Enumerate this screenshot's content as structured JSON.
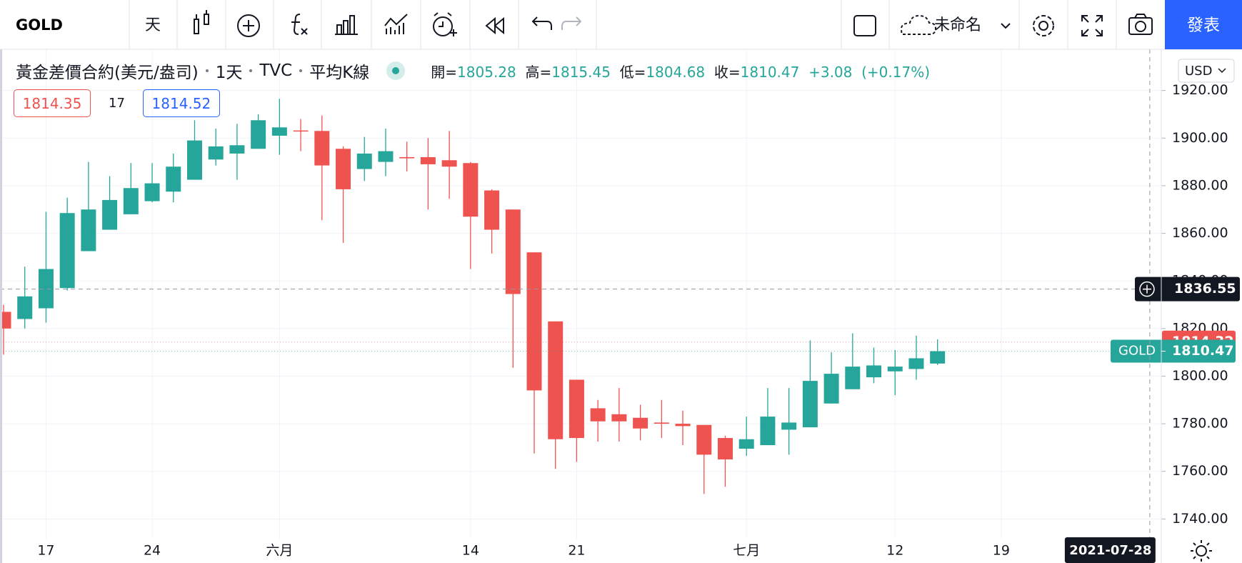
{
  "toolbar": {
    "symbol": "GOLD",
    "interval": "天",
    "layout_name": "未命名",
    "publish": "發表"
  },
  "legend": {
    "title": "黃金差價合約(美元/盎司)",
    "interval": "1天",
    "source": "TVC",
    "chart_style": "平均K線",
    "ohlc": [
      {
        "label": "開=",
        "value": 1805.28
      },
      {
        "label": "高=",
        "value": 1815.45
      },
      {
        "label": "低=",
        "value": 1804.68
      },
      {
        "label": "收=",
        "value": 1810.47
      }
    ],
    "change": "+3.08",
    "change_percent": "(+0.17%)"
  },
  "order_boxes": {
    "sell": 1814.35,
    "spread": 17,
    "buy": 1814.52
  },
  "price_scale": {
    "currency": "USD"
  },
  "chart_data": {
    "type": "candlestick",
    "categories": [
      null,
      null,
      "17",
      null,
      null,
      null,
      null,
      "24",
      null,
      null,
      null,
      null,
      null,
      "六月",
      null,
      null,
      null,
      null,
      null,
      null,
      null,
      null,
      "14",
      null,
      null,
      null,
      null,
      "21",
      null,
      null,
      null,
      null,
      null,
      null,
      null,
      "七月",
      null,
      null,
      null,
      null,
      null,
      null,
      "12",
      null,
      null,
      null,
      null,
      "19",
      null,
      null,
      null,
      null,
      null,
      null,
      null
    ],
    "open": [
      1827,
      1824,
      1828.5,
      1837,
      1852.5,
      1861.5,
      1868,
      1873.5,
      1877.5,
      1882.5,
      1891,
      1893.5,
      1895.5,
      1901,
      1903.2,
      1903,
      1895.5,
      1887,
      1890,
      1892,
      1892,
      1890.7,
      1889.5,
      1878,
      1870,
      1852,
      1823,
      1798.5,
      1786.5,
      1784,
      1782.5,
      1780.5,
      1780,
      1779.5,
      1774,
      1769.5,
      1771,
      1777.5,
      1778.5,
      1788.5,
      1794.5,
      1799.5,
      1802,
      1803,
      1805.28,
      null,
      null,
      null,
      null,
      null,
      null,
      null,
      null,
      null,
      null
    ],
    "high": [
      1830,
      1846,
      1869,
      1875,
      1890,
      1884,
      1889.5,
      1889.5,
      1893.5,
      1907.5,
      1904,
      1906,
      1910,
      1916.5,
      1908,
      1909.5,
      1896.5,
      1900.5,
      1904,
      1898.5,
      1900,
      1903,
      1890,
      1878.5,
      1870,
      1852,
      1823,
      1798.5,
      1790,
      1795,
      1788,
      1790,
      1785.5,
      1779.5,
      1775,
      1783,
      1795,
      1795,
      1815,
      1810,
      1818,
      1812,
      1811,
      1817,
      1815.45,
      null,
      null,
      null,
      null,
      null,
      null,
      null,
      null,
      null,
      null
    ],
    "low": [
      1809,
      1820,
      1822.5,
      1836,
      1852.5,
      1861.5,
      1868,
      1873,
      1873,
      1882.5,
      1888.5,
      1882.5,
      1895.5,
      1893,
      1894.5,
      1865.5,
      1856,
      1882,
      1884,
      1886,
      1870,
      1874.5,
      1845,
      1851.5,
      1803.5,
      1767.5,
      1761,
      1764,
      1772.5,
      1772.5,
      1773,
      1774,
      1771,
      1750.5,
      1753.5,
      1766.5,
      1771,
      1767,
      1778.5,
      1788.5,
      1794.5,
      1797,
      1792,
      1798.5,
      1804.68,
      null,
      null,
      null,
      null,
      null,
      null,
      null,
      null,
      null,
      null
    ],
    "close": [
      1820,
      1833.5,
      1845,
      1868.5,
      1870,
      1874,
      1879,
      1881,
      1888,
      1899,
      1896.5,
      1897,
      1907.5,
      1904.5,
      1902.8,
      1888.5,
      1878.5,
      1893.5,
      1894.5,
      1891.5,
      1889,
      1888,
      1867,
      1861.5,
      1834.5,
      1794,
      1773.5,
      1774,
      1781,
      1781,
      1778,
      1780,
      1779,
      1767,
      1765,
      1773.5,
      1783,
      1780.5,
      1798,
      1801,
      1804,
      1804.5,
      1804,
      1807.5,
      1810.47,
      null,
      null,
      null,
      null,
      null,
      null,
      null,
      null,
      null,
      null
    ],
    "up_color": "#26a69a",
    "down_color": "#ef5350",
    "ylim": [
      1731.7,
      1937.3
    ],
    "yticks": [
      {
        "value": 1740,
        "label": "1740.00"
      },
      {
        "value": 1760,
        "label": "1760.00"
      },
      {
        "value": 1780,
        "label": "1780.00"
      },
      {
        "value": 1800,
        "label": "1800.00"
      },
      {
        "value": 1820,
        "label": "1820.00"
      },
      {
        "value": 1840,
        "label": "1840.00"
      },
      {
        "value": 1860,
        "label": "1860.00"
      },
      {
        "value": 1880,
        "label": "1880.00"
      },
      {
        "value": 1900,
        "label": "1900.00"
      },
      {
        "value": 1920,
        "label": "1920.00"
      }
    ],
    "grid": true,
    "price_lines": [
      {
        "value": 1814.32,
        "color": "#ef5350"
      },
      {
        "name": "GOLD",
        "value": 1810.47,
        "color": "#26a69a"
      }
    ],
    "crosshair": {
      "value": 1836.55,
      "date": "2021-07-28"
    }
  }
}
